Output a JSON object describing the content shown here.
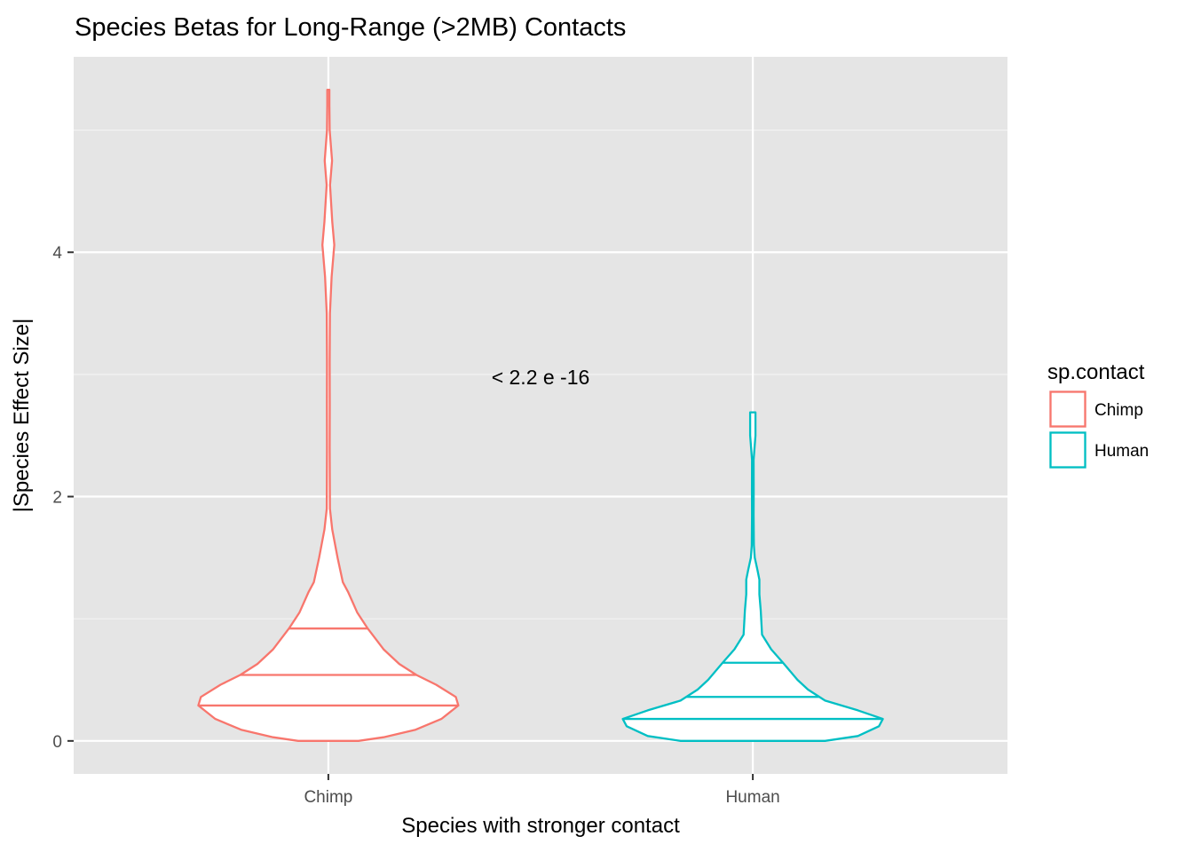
{
  "chart_data": {
    "type": "violin",
    "title": "Species Betas for Long-Range (>2MB) Contacts",
    "xlabel": "Species with stronger contact",
    "ylabel": "|Species Effect Size|",
    "categories": [
      "Chimp",
      "Human"
    ],
    "y_ticks": [
      0,
      2,
      4
    ],
    "ylim": [
      -0.27,
      5.6
    ],
    "grid": true,
    "panel_background": "#E5E5E5",
    "annotation": "< 2.2 e -16",
    "legend": {
      "title": "sp.contact",
      "position": "right",
      "entries": [
        {
          "label": "Chimp",
          "color": "#F8766D"
        },
        {
          "label": "Human",
          "color": "#00BFC4"
        }
      ]
    },
    "series": [
      {
        "name": "Chimp",
        "color": "#F8766D",
        "quantiles": [
          0.29,
          0.54,
          0.92
        ],
        "max": 5.33,
        "density": [
          [
            0.0,
            0.23
          ],
          [
            0.03,
            0.42
          ],
          [
            0.09,
            0.66
          ],
          [
            0.18,
            0.86
          ],
          [
            0.29,
            0.99
          ],
          [
            0.36,
            0.97
          ],
          [
            0.46,
            0.82
          ],
          [
            0.54,
            0.67
          ],
          [
            0.63,
            0.54
          ],
          [
            0.75,
            0.42
          ],
          [
            0.92,
            0.3
          ],
          [
            1.05,
            0.22
          ],
          [
            1.22,
            0.15
          ],
          [
            1.3,
            0.11
          ],
          [
            1.5,
            0.07
          ],
          [
            1.73,
            0.03
          ],
          [
            1.9,
            0.012
          ],
          [
            2.4,
            0.01
          ],
          [
            2.75,
            0.011
          ],
          [
            3.1,
            0.01
          ],
          [
            3.5,
            0.012
          ],
          [
            3.8,
            0.025
          ],
          [
            4.06,
            0.045
          ],
          [
            4.25,
            0.03
          ],
          [
            4.55,
            0.013
          ],
          [
            4.75,
            0.028
          ],
          [
            5.0,
            0.01
          ],
          [
            5.2,
            0.008
          ],
          [
            5.33,
            0.008
          ]
        ]
      },
      {
        "name": "Human",
        "color": "#00BFC4",
        "quantiles": [
          0.18,
          0.36,
          0.64
        ],
        "max": 2.69,
        "density": [
          [
            0.0,
            0.55
          ],
          [
            0.04,
            0.8
          ],
          [
            0.12,
            0.96
          ],
          [
            0.18,
            0.99
          ],
          [
            0.25,
            0.8
          ],
          [
            0.33,
            0.55
          ],
          [
            0.42,
            0.42
          ],
          [
            0.5,
            0.34
          ],
          [
            0.64,
            0.23
          ],
          [
            0.75,
            0.14
          ],
          [
            0.87,
            0.07
          ],
          [
            1.07,
            0.06
          ],
          [
            1.2,
            0.05
          ],
          [
            1.32,
            0.05
          ],
          [
            1.4,
            0.035
          ],
          [
            1.5,
            0.015
          ],
          [
            1.6,
            0.008
          ],
          [
            1.85,
            0.006
          ],
          [
            2.05,
            0.007
          ],
          [
            2.3,
            0.006
          ],
          [
            2.5,
            0.02
          ],
          [
            2.69,
            0.02
          ]
        ]
      }
    ]
  }
}
